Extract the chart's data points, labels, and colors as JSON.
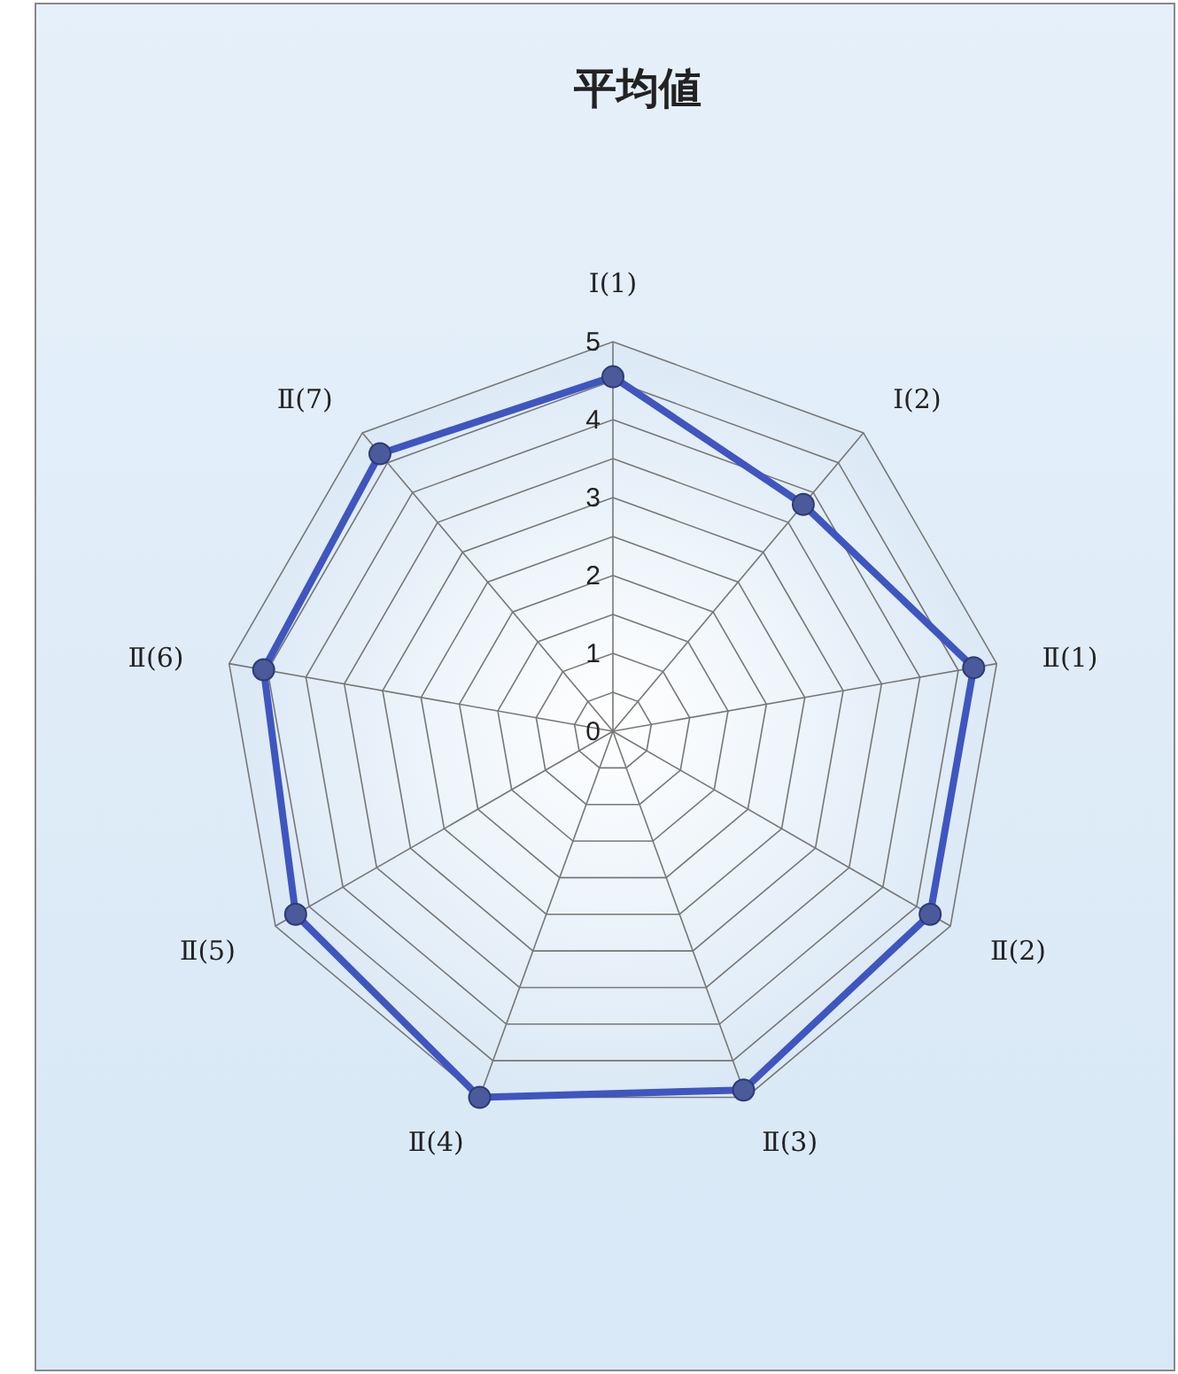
{
  "chart_data": {
    "type": "radar",
    "title": "平均値",
    "categories": [
      "Ⅰ(1)",
      "Ⅰ(2)",
      "Ⅱ(1)",
      "Ⅱ(2)",
      "Ⅱ(3)",
      "Ⅱ(4)",
      "Ⅱ(5)",
      "Ⅱ(6)",
      "Ⅱ(7)"
    ],
    "series": [
      {
        "color": "#3f55c0",
        "values": [
          4.55,
          3.8,
          4.7,
          4.7,
          4.9,
          5.0,
          4.7,
          4.55,
          4.65
        ]
      }
    ],
    "ylim": [
      0,
      5
    ],
    "yticks": [
      0,
      1,
      2,
      3,
      4,
      5
    ],
    "marker": "circle",
    "grid": true
  }
}
